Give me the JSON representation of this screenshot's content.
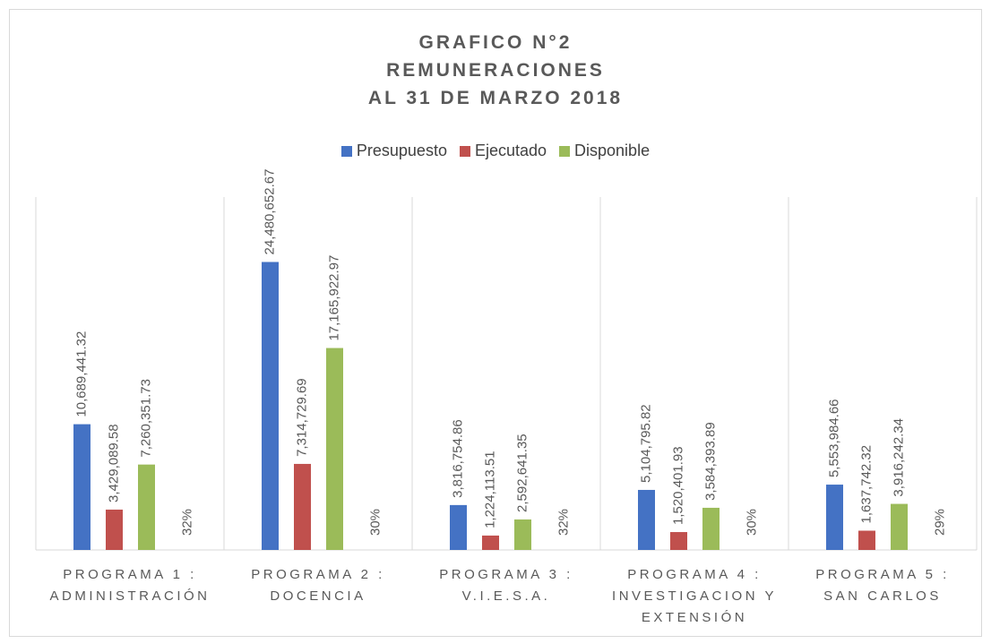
{
  "chart_data": {
    "type": "bar",
    "title": "GRAFICO N°2\nREMUNERACIONES\nAL 31 DE MARZO 2018",
    "categories": [
      "PROGRAMA 1 :\nADMINISTRACIÓN",
      "PROGRAMA 2 :\nDOCENCIA",
      "PROGRAMA 3 :\nV.I.E.S.A.",
      "PROGRAMA 4 :\nINVESTIGACION Y\nEXTENSIÓN",
      "PROGRAMA 5 :\nSAN CARLOS"
    ],
    "series": [
      {
        "name": "Presupuesto",
        "color": "#4472c4",
        "values": [
          10689441.32,
          24480652.67,
          3816754.86,
          5104795.82,
          5553984.66
        ],
        "value_labels": [
          "10,689,441.32",
          "24,480,652.67",
          "3,816,754.86",
          "5,104,795.82",
          "5,553,984.66"
        ]
      },
      {
        "name": "Ejecutado",
        "color": "#c0504d",
        "values": [
          3429089.58,
          7314729.69,
          1224113.51,
          1520401.93,
          1637742.32
        ],
        "value_labels": [
          "3,429,089.58",
          "7,314,729.69",
          "1,224,113.51",
          "1,520,401.93",
          "1,637,742.32"
        ]
      },
      {
        "name": "Disponible",
        "color": "#9bbb59",
        "values": [
          7260351.73,
          17165922.97,
          2592641.35,
          3584393.89,
          3916242.34
        ],
        "value_labels": [
          "7,260,351.73",
          "17,165,922.97",
          "2,592,641.35",
          "3,584,393.89",
          "3,916,242.34"
        ]
      }
    ],
    "annotations": [
      "32%",
      "30%",
      "32%",
      "30%",
      "29%"
    ],
    "ylim": [
      0,
      30000000
    ],
    "legend": "top"
  }
}
